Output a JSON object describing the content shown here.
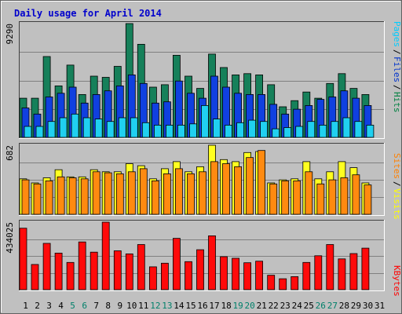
{
  "chart_data": {
    "type": "bar",
    "title": "Daily usage for April 2014",
    "categories": [
      "1",
      "2",
      "3",
      "4",
      "5",
      "6",
      "7",
      "8",
      "9",
      "10",
      "11",
      "12",
      "13",
      "14",
      "15",
      "16",
      "17",
      "18",
      "19",
      "20",
      "21",
      "22",
      "23",
      "24",
      "25",
      "26",
      "27",
      "28",
      "29",
      "30",
      "31"
    ],
    "weekend_days": [
      "5",
      "6",
      "12",
      "13",
      "19",
      "20",
      "26",
      "27"
    ],
    "panels": [
      {
        "name": "hits-files-pages",
        "ymax_label": "9290",
        "ymax": 9290,
        "grid": true,
        "legend": [
          {
            "label": "Pages",
            "color": "#00ccff"
          },
          {
            "label": "Files",
            "color": "#0033cc"
          },
          {
            "label": "Hits",
            "color": "#008040"
          }
        ],
        "series": [
          {
            "name": "Hits",
            "color": "#16805a",
            "values": [
              3200,
              3200,
              6600,
              4200,
              5900,
              3500,
              5000,
              4900,
              5800,
              9290,
              7600,
              4100,
              4300,
              6700,
              5000,
              4000,
              6800,
              5700,
              5100,
              5200,
              5100,
              4300,
              2500,
              3000,
              3700,
              3200,
              4400,
              5200,
              4000,
              3500,
              0
            ]
          },
          {
            "name": "Files",
            "color": "#1040e0",
            "values": [
              2400,
              1900,
              3300,
              3600,
              4100,
              2800,
              3500,
              3800,
              4200,
              5100,
              4400,
              2800,
              2900,
              4600,
              3600,
              3200,
              5000,
              4100,
              3600,
              3500,
              3500,
              2700,
              1900,
              2300,
              2600,
              3100,
              3300,
              3800,
              3200,
              2600,
              0
            ]
          },
          {
            "name": "Pages",
            "color": "#20d0f0",
            "values": [
              900,
              900,
              1300,
              1600,
              1900,
              1600,
              1500,
              1300,
              1600,
              1600,
              1200,
              1000,
              1000,
              1000,
              1100,
              2600,
              1500,
              1000,
              1200,
              1400,
              1300,
              700,
              800,
              900,
              1300,
              1000,
              1300,
              1600,
              1300,
              1000,
              0
            ]
          }
        ]
      },
      {
        "name": "visits-sites",
        "ymax_label": "682",
        "ymax": 682,
        "grid": true,
        "legend": [
          {
            "label": "Sites",
            "color": "#ff8000"
          },
          {
            "label": "Visits",
            "color": "#ffff00"
          }
        ],
        "series": [
          {
            "name": "Visits",
            "color": "#ffff20",
            "values": [
              350,
              310,
              360,
              440,
              370,
              370,
              440,
              420,
              420,
              500,
              480,
              350,
              450,
              520,
              420,
              470,
              682,
              540,
              520,
              610,
              620,
              310,
              340,
              350,
              520,
              350,
              420,
              520,
              460,
              310,
              0
            ]
          },
          {
            "name": "Sites",
            "color": "#ff8a10",
            "values": [
              340,
              300,
              330,
              370,
              360,
              350,
              420,
              410,
              400,
              420,
              450,
              330,
              400,
              450,
              400,
              420,
              520,
              500,
              470,
              560,
              630,
              300,
              330,
              330,
              420,
              300,
              340,
              360,
              390,
              290,
              0
            ]
          }
        ]
      },
      {
        "name": "kbytes",
        "ymax_label": "434025",
        "ymax": 434025,
        "grid": true,
        "legend": [
          {
            "label": "KBytes",
            "color": "#ff0000"
          }
        ],
        "series": [
          {
            "name": "KBytes",
            "color": "#ff0a0a",
            "values": [
              395000,
              162000,
              298000,
              235000,
              175000,
              307000,
              241000,
              434025,
              250000,
              230000,
              290000,
              147000,
              170000,
              330000,
              180000,
              257000,
              346000,
              212000,
              202000,
              173000,
              183000,
              93000,
              70000,
              84000,
              175000,
              218000,
              290000,
              198000,
              232000,
              267000,
              0
            ]
          }
        ]
      }
    ]
  }
}
